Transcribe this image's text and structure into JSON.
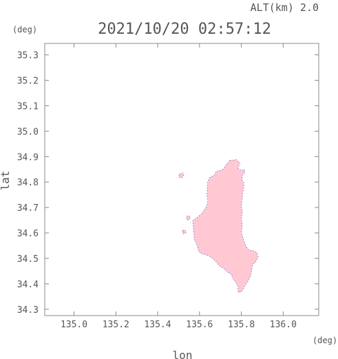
{
  "chart_data": {
    "type": "map",
    "title": "2021/10/20 02:57:12",
    "altitude_label": "ALT(km) 2.0",
    "xlabel": "lon",
    "ylabel": "lat",
    "x_unit": "(deg)",
    "y_unit": "(deg)",
    "xlim": [
      134.86,
      136.17
    ],
    "ylim": [
      34.275,
      35.345
    ],
    "x_ticks": [
      135.0,
      135.2,
      135.4,
      135.6,
      135.8,
      136.0
    ],
    "x_tick_labels": [
      "135.0",
      "135.2",
      "135.4",
      "135.6",
      "135.8",
      "136.0"
    ],
    "y_ticks": [
      34.3,
      34.4,
      34.5,
      34.6,
      34.7,
      34.8,
      34.9,
      35.0,
      35.1,
      35.2,
      35.3
    ],
    "y_tick_labels": [
      "34.3",
      "34.4",
      "34.5",
      "34.6",
      "34.7",
      "34.8",
      "34.9",
      "35.0",
      "35.1",
      "35.2",
      "35.3"
    ],
    "grid": false,
    "fill_color": "#ffc8d2",
    "edge_color": "#6a5acd",
    "regions": [
      {
        "name": "",
        "polygon": [
          [
            135.746,
            34.885
          ],
          [
            135.775,
            34.888
          ],
          [
            135.793,
            34.875
          ],
          [
            135.784,
            34.855
          ],
          [
            135.8,
            34.845
          ],
          [
            135.814,
            34.85
          ],
          [
            135.817,
            34.838
          ],
          [
            135.805,
            34.828
          ],
          [
            135.804,
            34.805
          ],
          [
            135.812,
            34.798
          ],
          [
            135.812,
            34.78
          ],
          [
            135.807,
            34.76
          ],
          [
            135.804,
            34.735
          ],
          [
            135.8,
            34.705
          ],
          [
            135.805,
            34.685
          ],
          [
            135.8,
            34.655
          ],
          [
            135.805,
            34.63
          ],
          [
            135.8,
            34.6
          ],
          [
            135.812,
            34.57
          ],
          [
            135.824,
            34.545
          ],
          [
            135.837,
            34.532
          ],
          [
            135.86,
            34.53
          ],
          [
            135.875,
            34.522
          ],
          [
            135.88,
            34.506
          ],
          [
            135.869,
            34.487
          ],
          [
            135.853,
            34.475
          ],
          [
            135.85,
            34.455
          ],
          [
            135.843,
            34.43
          ],
          [
            135.832,
            34.41
          ],
          [
            135.816,
            34.39
          ],
          [
            135.8,
            34.368
          ],
          [
            135.785,
            34.366
          ],
          [
            135.783,
            34.39
          ],
          [
            135.774,
            34.405
          ],
          [
            135.762,
            34.418
          ],
          [
            135.752,
            34.436
          ],
          [
            135.733,
            34.447
          ],
          [
            135.716,
            34.46
          ],
          [
            135.695,
            34.47
          ],
          [
            135.678,
            34.487
          ],
          [
            135.663,
            34.5
          ],
          [
            135.643,
            34.51
          ],
          [
            135.625,
            34.515
          ],
          [
            135.605,
            34.52
          ],
          [
            135.596,
            34.528
          ],
          [
            135.588,
            34.552
          ],
          [
            135.575,
            34.575
          ],
          [
            135.573,
            34.598
          ],
          [
            135.57,
            34.625
          ],
          [
            135.568,
            34.648
          ],
          [
            135.588,
            34.66
          ],
          [
            135.61,
            34.676
          ],
          [
            135.623,
            34.69
          ],
          [
            135.635,
            34.708
          ],
          [
            135.64,
            34.728
          ],
          [
            135.635,
            34.75
          ],
          [
            135.637,
            34.775
          ],
          [
            135.639,
            34.8
          ],
          [
            135.65,
            34.82
          ],
          [
            135.668,
            34.825
          ],
          [
            135.68,
            34.842
          ],
          [
            135.7,
            34.846
          ],
          [
            135.715,
            34.852
          ],
          [
            135.726,
            34.868
          ]
        ]
      },
      {
        "name": "",
        "polygon": [
          [
            135.505,
            34.832
          ],
          [
            135.52,
            34.836
          ],
          [
            135.525,
            34.828
          ],
          [
            135.518,
            34.818
          ],
          [
            135.506,
            34.816
          ],
          [
            135.5,
            34.823
          ]
        ]
      },
      {
        "name": "",
        "polygon": [
          [
            135.54,
            34.665
          ],
          [
            135.552,
            34.668
          ],
          [
            135.556,
            34.657
          ],
          [
            135.546,
            34.65
          ],
          [
            135.537,
            34.655
          ]
        ]
      },
      {
        "name": "",
        "polygon": [
          [
            135.52,
            34.61
          ],
          [
            135.532,
            34.612
          ],
          [
            135.536,
            34.602
          ],
          [
            135.526,
            34.596
          ],
          [
            135.517,
            34.601
          ]
        ]
      }
    ]
  }
}
